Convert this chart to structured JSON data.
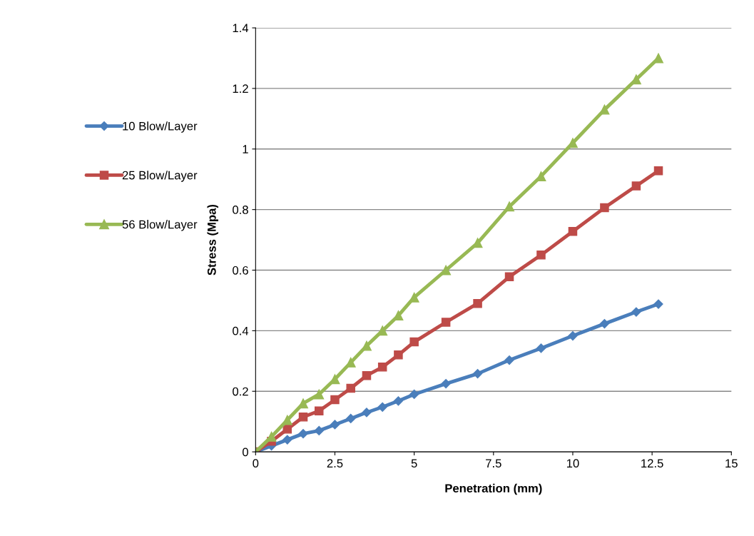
{
  "chart_data": {
    "type": "line",
    "xlabel": "Penetration (mm)",
    "ylabel": "Stress (Mpa)",
    "x": [
      0,
      0.5,
      1,
      1.5,
      2,
      2.5,
      3,
      3.5,
      4,
      4.5,
      5,
      6,
      7,
      8,
      9,
      10,
      11,
      12,
      12.7
    ],
    "series": [
      {
        "name": "10 Blow/Layer",
        "color": "#4a7ebb",
        "marker": "diamond",
        "values": [
          0,
          0.02,
          0.04,
          0.06,
          0.07,
          0.09,
          0.11,
          0.13,
          0.148,
          0.168,
          0.19,
          0.225,
          0.258,
          0.303,
          0.342,
          0.383,
          0.423,
          0.462,
          0.488
        ]
      },
      {
        "name": "25 Blow/Layer",
        "color": "#be4b48",
        "marker": "square",
        "values": [
          0,
          0.035,
          0.075,
          0.115,
          0.135,
          0.172,
          0.21,
          0.252,
          0.28,
          0.32,
          0.363,
          0.428,
          0.49,
          0.578,
          0.65,
          0.728,
          0.806,
          0.878,
          0.928
        ]
      },
      {
        "name": "56 Blow/Layer",
        "color": "#98b954",
        "marker": "triangle",
        "values": [
          0,
          0.05,
          0.105,
          0.16,
          0.19,
          0.24,
          0.295,
          0.35,
          0.4,
          0.45,
          0.51,
          0.6,
          0.69,
          0.81,
          0.91,
          1.02,
          1.13,
          1.23,
          1.3
        ]
      }
    ],
    "xlim": [
      0,
      15
    ],
    "xticks": [
      0,
      2.5,
      5,
      7.5,
      10,
      12.5,
      15
    ],
    "ylim": [
      0,
      1.4
    ],
    "yticks": [
      0,
      0.2,
      0.4,
      0.6,
      0.8,
      1,
      1.2,
      1.4
    ],
    "grid": "y",
    "legend": "left",
    "line_style": "solid"
  }
}
